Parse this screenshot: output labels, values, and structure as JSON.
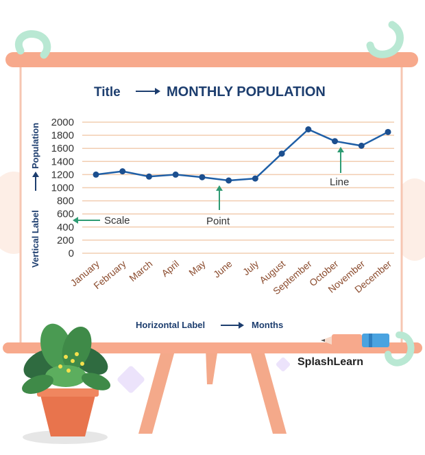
{
  "title": {
    "prefix": "Title",
    "text": "MONTHLY POPULATION"
  },
  "y_axis_label": {
    "prefix": "Vertical Label",
    "text": "Population"
  },
  "x_axis_label": {
    "prefix": "Horizontal Label",
    "text": "Months"
  },
  "annotations": {
    "scale": "Scale",
    "point": "Point",
    "line": "Line"
  },
  "brand": "SplashLearn",
  "colors": {
    "line": "#1f5fa6",
    "point": "#1c4f8f",
    "arrow": "#2e9b73",
    "grid": "#f2cdb0",
    "frame": "#f7a98c",
    "title": "#1c3d6e",
    "tick_x": "#8a4a2c"
  },
  "chart_data": {
    "type": "line",
    "title": "MONTHLY POPULATION",
    "xlabel": "Months",
    "ylabel": "Population",
    "categories": [
      "January",
      "February",
      "March",
      "April",
      "May",
      "June",
      "July",
      "August",
      "September",
      "October",
      "November",
      "December"
    ],
    "values": [
      1200,
      1250,
      1170,
      1200,
      1160,
      1110,
      1140,
      1520,
      1890,
      1710,
      1640,
      1850
    ],
    "y_ticks": [
      0,
      200,
      400,
      600,
      800,
      1000,
      1200,
      1400,
      1600,
      1800,
      2000
    ],
    "ylim": [
      0,
      2000
    ],
    "grid": true,
    "legend": false
  }
}
